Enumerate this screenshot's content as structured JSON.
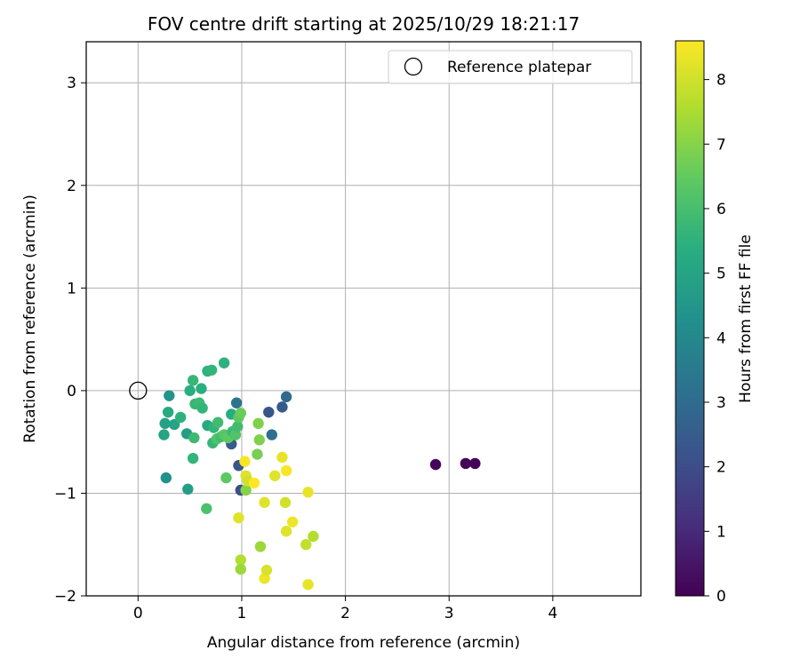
{
  "chart_data": {
    "type": "scatter",
    "title": "FOV centre drift starting at 2025/10/29 18:21:17",
    "xlabel": "Angular distance from reference (arcmin)",
    "ylabel": "Rotation from reference (arcmin)",
    "xlim": [
      -0.5,
      4.85
    ],
    "ylim": [
      -2.0,
      3.4
    ],
    "xticks": [
      0,
      1,
      2,
      3,
      4
    ],
    "yticks": [
      -2,
      -1,
      0,
      1,
      2,
      3
    ],
    "grid": true,
    "legend": {
      "position": "top-right",
      "entries": [
        {
          "label": "Reference platepar",
          "marker": "open-circle"
        }
      ]
    },
    "reference_point": {
      "x": 0,
      "y": 0
    },
    "colorbar": {
      "label": "Hours from first FF file",
      "min": 0,
      "max": 8.6,
      "ticks": [
        0,
        1,
        2,
        3,
        4,
        5,
        6,
        7,
        8
      ],
      "colormap": "viridis"
    },
    "points": [
      {
        "x": 2.87,
        "y": -0.72,
        "c": 0.1
      },
      {
        "x": 3.16,
        "y": -0.71,
        "c": 0.1
      },
      {
        "x": 3.25,
        "y": -0.71,
        "c": 0.1
      },
      {
        "x": 1.43,
        "y": -0.06,
        "c": 3.0
      },
      {
        "x": 1.39,
        "y": -0.16,
        "c": 2.5
      },
      {
        "x": 1.26,
        "y": -0.21,
        "c": 2.3
      },
      {
        "x": 1.29,
        "y": -0.43,
        "c": 3.2
      },
      {
        "x": 0.95,
        "y": -0.12,
        "c": 3.3
      },
      {
        "x": 0.9,
        "y": -0.52,
        "c": 2.5
      },
      {
        "x": 0.97,
        "y": -0.73,
        "c": 2.3
      },
      {
        "x": 0.99,
        "y": -0.97,
        "c": 2.0
      },
      {
        "x": 0.3,
        "y": -0.05,
        "c": 4.4
      },
      {
        "x": 0.29,
        "y": -0.21,
        "c": 5.2
      },
      {
        "x": 0.26,
        "y": -0.32,
        "c": 4.9
      },
      {
        "x": 0.25,
        "y": -0.43,
        "c": 5.0
      },
      {
        "x": 0.35,
        "y": -0.33,
        "c": 5.0
      },
      {
        "x": 0.41,
        "y": -0.26,
        "c": 5.5
      },
      {
        "x": 0.47,
        "y": -0.42,
        "c": 4.8
      },
      {
        "x": 0.54,
        "y": -0.46,
        "c": 5.8
      },
      {
        "x": 0.27,
        "y": -0.85,
        "c": 4.3
      },
      {
        "x": 0.48,
        "y": -0.96,
        "c": 4.8
      },
      {
        "x": 0.53,
        "y": -0.66,
        "c": 5.6
      },
      {
        "x": 0.66,
        "y": -1.15,
        "c": 6.1
      },
      {
        "x": 0.5,
        "y": 0.0,
        "c": 5.4
      },
      {
        "x": 0.53,
        "y": 0.1,
        "c": 5.7
      },
      {
        "x": 0.61,
        "y": 0.02,
        "c": 5.4
      },
      {
        "x": 0.55,
        "y": -0.13,
        "c": 5.7
      },
      {
        "x": 0.59,
        "y": -0.12,
        "c": 5.8
      },
      {
        "x": 0.62,
        "y": -0.17,
        "c": 5.6
      },
      {
        "x": 0.67,
        "y": 0.19,
        "c": 5.5
      },
      {
        "x": 0.71,
        "y": 0.2,
        "c": 5.6
      },
      {
        "x": 0.83,
        "y": 0.27,
        "c": 5.5
      },
      {
        "x": 0.67,
        "y": -0.34,
        "c": 5.2
      },
      {
        "x": 0.73,
        "y": -0.36,
        "c": 5.6
      },
      {
        "x": 0.77,
        "y": -0.31,
        "c": 5.9
      },
      {
        "x": 0.72,
        "y": -0.51,
        "c": 5.7
      },
      {
        "x": 0.76,
        "y": -0.47,
        "c": 6.2
      },
      {
        "x": 0.8,
        "y": -0.45,
        "c": 5.9
      },
      {
        "x": 0.83,
        "y": -0.43,
        "c": 6.3
      },
      {
        "x": 0.87,
        "y": -0.46,
        "c": 6.4
      },
      {
        "x": 0.91,
        "y": -0.4,
        "c": 5.8
      },
      {
        "x": 0.94,
        "y": -0.43,
        "c": 6.2
      },
      {
        "x": 0.96,
        "y": -0.35,
        "c": 5.9
      },
      {
        "x": 0.9,
        "y": -0.23,
        "c": 5.3
      },
      {
        "x": 0.97,
        "y": -0.26,
        "c": 6.4
      },
      {
        "x": 0.99,
        "y": -0.22,
        "c": 6.6
      },
      {
        "x": 0.85,
        "y": -0.85,
        "c": 6.4
      },
      {
        "x": 1.16,
        "y": -0.32,
        "c": 6.9
      },
      {
        "x": 1.17,
        "y": -0.48,
        "c": 6.9
      },
      {
        "x": 1.15,
        "y": -0.62,
        "c": 6.8
      },
      {
        "x": 1.04,
        "y": -0.97,
        "c": 7.0
      },
      {
        "x": 0.97,
        "y": -1.24,
        "c": 8.2
      },
      {
        "x": 1.18,
        "y": -1.52,
        "c": 7.3
      },
      {
        "x": 0.99,
        "y": -1.65,
        "c": 7.6
      },
      {
        "x": 0.99,
        "y": -1.74,
        "c": 7.3
      },
      {
        "x": 1.03,
        "y": -0.69,
        "c": 8.5
      },
      {
        "x": 1.04,
        "y": -0.83,
        "c": 8.2
      },
      {
        "x": 1.06,
        "y": -0.88,
        "c": 8.0
      },
      {
        "x": 1.12,
        "y": -0.9,
        "c": 8.6
      },
      {
        "x": 1.22,
        "y": -1.09,
        "c": 8.2
      },
      {
        "x": 1.22,
        "y": -1.83,
        "c": 8.4
      },
      {
        "x": 1.24,
        "y": -1.75,
        "c": 8.1
      },
      {
        "x": 1.32,
        "y": -0.83,
        "c": 8.2
      },
      {
        "x": 1.39,
        "y": -0.65,
        "c": 8.3
      },
      {
        "x": 1.43,
        "y": -0.78,
        "c": 8.5
      },
      {
        "x": 1.42,
        "y": -1.09,
        "c": 8.0
      },
      {
        "x": 1.43,
        "y": -1.37,
        "c": 8.2
      },
      {
        "x": 1.49,
        "y": -1.28,
        "c": 8.4
      },
      {
        "x": 1.62,
        "y": -1.5,
        "c": 7.8
      },
      {
        "x": 1.64,
        "y": -0.99,
        "c": 8.3
      },
      {
        "x": 1.64,
        "y": -1.89,
        "c": 8.3
      },
      {
        "x": 1.69,
        "y": -1.42,
        "c": 7.6
      }
    ]
  }
}
